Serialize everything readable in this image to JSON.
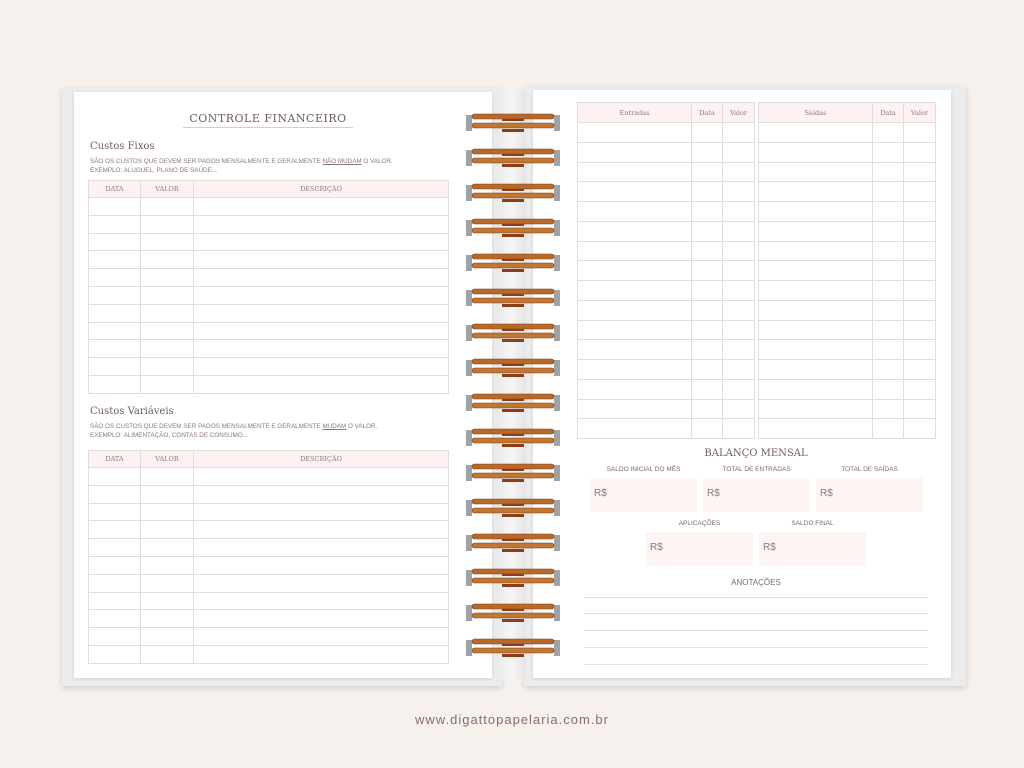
{
  "left_page": {
    "title": "CONTROLE FINANCEIRO",
    "fixed": {
      "heading": "Custos Fixos",
      "note_a": "SÃO OS CUSTOS QUE DEVEM SER PAGOS MENSALMENTE E GERALMENTE ",
      "note_emph": "NÃO MUDAM",
      "note_b": " O VALOR.",
      "example": "EXEMPLO: ALUGUEL, PLANO DE SAÚDE..."
    },
    "variable": {
      "heading": "Custos Variáveis",
      "note_a": "SÃO OS CUSTOS QUE DEVEM SER PAGOS MENSALMENTE E GERALMENTE ",
      "note_emph": "MUDAM",
      "note_b": " O VALOR.",
      "example": "EXEMPLO: ALIMENTAÇÃO, CONTAS DE CONSUMO..."
    },
    "columns": [
      "DATA",
      "VALOR",
      "DESCRIÇÃO"
    ]
  },
  "right_page": {
    "income_columns": [
      "Entradas",
      "Data",
      "Valor"
    ],
    "expense_columns": [
      "Saídas",
      "Data",
      "Valor"
    ],
    "balance": {
      "title": "BALANÇO MENSAL",
      "fields": [
        {
          "label": "SALDO INICIAL DO MÊS",
          "value": "R$"
        },
        {
          "label": "TOTAL DE ENTRADAS",
          "value": "R$"
        },
        {
          "label": "TOTAL DE SAÍDAS",
          "value": "R$"
        },
        {
          "label": "APLICAÇÕES",
          "value": "R$"
        },
        {
          "label": "SALDO FINAL",
          "value": "R$"
        }
      ]
    },
    "notes_title": "ANOTAÇÕES"
  },
  "footer": {
    "url": "www.digattopapelaria.com.br"
  },
  "colors": {
    "background": "#f6f1ec",
    "header_fill": "#fdf1f1",
    "ring": "#b8692a"
  }
}
